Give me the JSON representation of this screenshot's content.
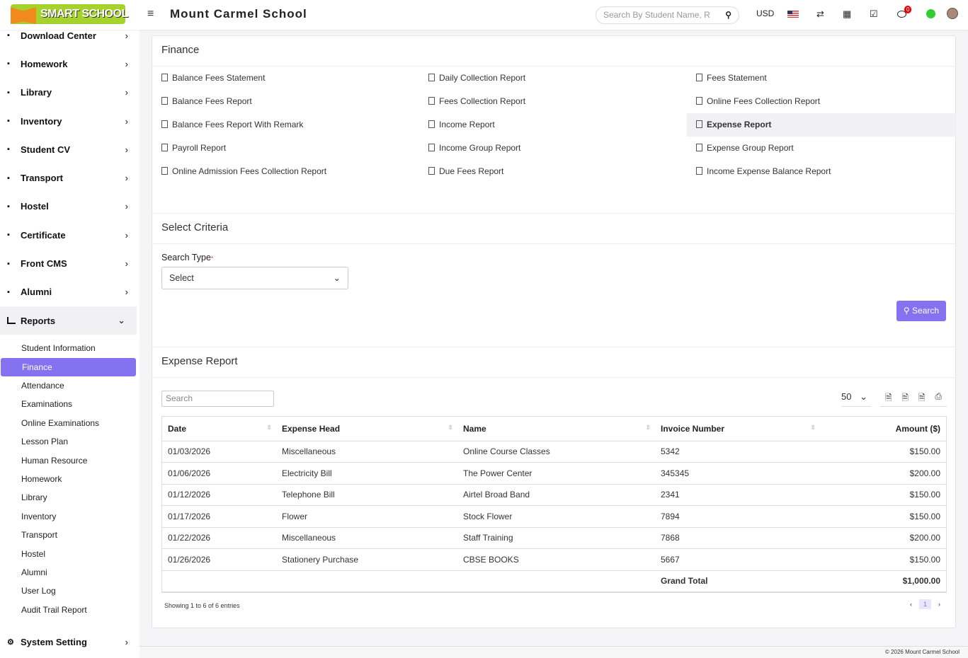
{
  "header": {
    "logo_text": "SMART SCHOOL",
    "school_name": "Mount Carmel School",
    "search_placeholder": "Search By Student Name, R",
    "currency": "USD",
    "notification_count": "0"
  },
  "sidebar": {
    "items": [
      {
        "label": "Download Center",
        "icon": "download-icon"
      },
      {
        "label": "Homework",
        "icon": "flask-icon"
      },
      {
        "label": "Library",
        "icon": "book-icon"
      },
      {
        "label": "Inventory",
        "icon": "inventory-icon"
      },
      {
        "label": "Student CV",
        "icon": "globe-icon"
      },
      {
        "label": "Transport",
        "icon": "bus-icon"
      },
      {
        "label": "Hostel",
        "icon": "building-icon"
      },
      {
        "label": "Certificate",
        "icon": "certificate-icon"
      },
      {
        "label": "Front CMS",
        "icon": "cms-icon"
      },
      {
        "label": "Alumni",
        "icon": "alumni-icon"
      }
    ],
    "reports": {
      "label": "Reports",
      "sub": [
        "Student Information",
        "Finance",
        "Attendance",
        "Examinations",
        "Online Examinations",
        "Lesson Plan",
        "Human Resource",
        "Homework",
        "Library",
        "Inventory",
        "Transport",
        "Hostel",
        "Alumni",
        "User Log",
        "Audit Trail Report"
      ],
      "active": "Finance"
    },
    "system": "System Setting"
  },
  "finance": {
    "title": "Finance",
    "links": [
      "Balance Fees Statement",
      "Daily Collection Report",
      "Fees Statement",
      "Balance Fees Report",
      "Fees Collection Report",
      "Online Fees Collection Report",
      "Balance Fees Report With Remark",
      "Income Report",
      "Expense Report",
      "Payroll Report",
      "Income Group Report",
      "Expense Group Report",
      "Online Admission Fees Collection Report",
      "Due Fees Report",
      "Income Expense Balance Report"
    ],
    "active": "Expense Report"
  },
  "criteria": {
    "title": "Select Criteria",
    "search_type_label": "Search Type",
    "required": "*",
    "select_value": "Select",
    "search_button": "Search"
  },
  "report": {
    "title": "Expense Report",
    "search_placeholder": "Search",
    "page_size": "50",
    "columns": [
      "Date",
      "Expense Head",
      "Name",
      "Invoice Number",
      "Amount ($)"
    ],
    "rows": [
      [
        "01/03/2026",
        "Miscellaneous",
        "Online Course Classes",
        "5342",
        "$150.00"
      ],
      [
        "01/06/2026",
        "Electricity Bill",
        "The Power Center",
        "345345",
        "$200.00"
      ],
      [
        "01/12/2026",
        "Telephone Bill",
        "Airtel Broad Band",
        "2341",
        "$150.00"
      ],
      [
        "01/17/2026",
        "Flower",
        "Stock Flower",
        "7894",
        "$150.00"
      ],
      [
        "01/22/2026",
        "Miscellaneous",
        "Staff Training",
        "7868",
        "$200.00"
      ],
      [
        "01/26/2026",
        "Stationery Purchase",
        "CBSE BOOKS",
        "5667",
        "$150.00"
      ]
    ],
    "grand_total_label": "Grand Total",
    "grand_total": "$1,000.00",
    "info": "Showing 1 to 6 of 6 entries",
    "page": "1"
  },
  "footer": "© 2026 Mount Carmel School",
  "colors": {
    "accent": "#8472f0",
    "logo": "#a6d22c"
  }
}
